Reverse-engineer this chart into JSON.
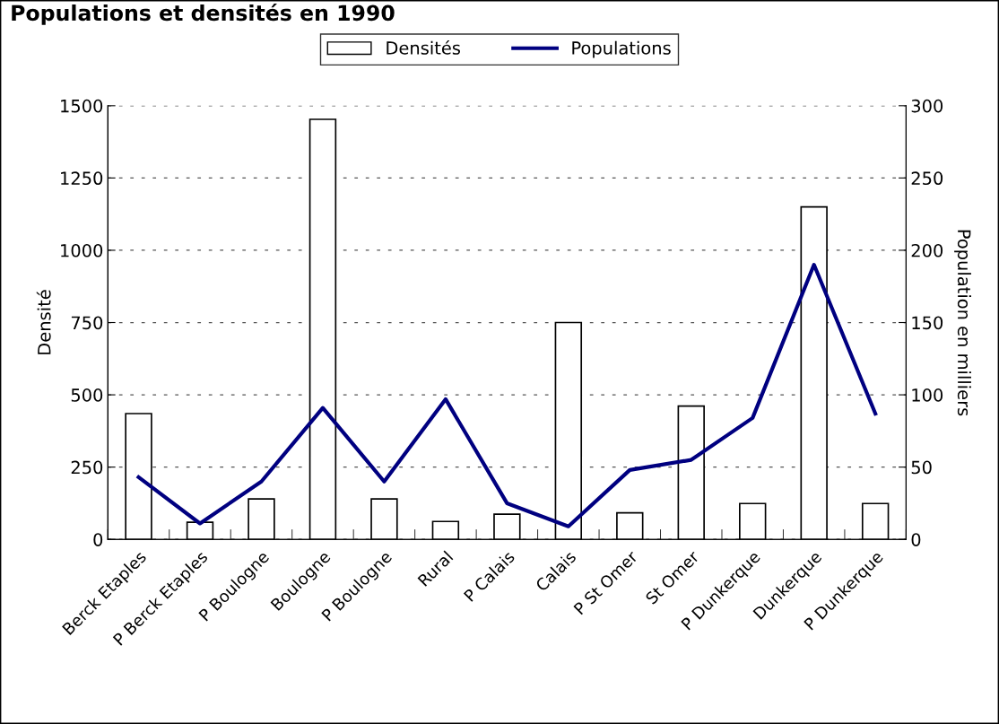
{
  "chart_data": {
    "type": "bar",
    "title": "Populations et densités en 1990",
    "categories": [
      "Berck Etaples",
      "P Berck Etaples",
      "P Boulogne",
      "Boulogne",
      "P Boulogne",
      "Rural",
      "P Calais",
      "Calais",
      "P St Omer",
      "St Omer",
      "P Dunkerque",
      "Dunkerque",
      "P Dunkerque"
    ],
    "series": [
      {
        "name": "Densités",
        "color": "#ffffff",
        "values": [
          435,
          59,
          140,
          1453,
          140,
          62,
          87,
          750,
          92,
          461,
          124,
          1150,
          124
        ]
      },
      {
        "name": "Populations",
        "type": "line",
        "axis": "y2",
        "color": "#000080",
        "values": [
          43,
          11,
          40,
          91,
          40,
          97,
          25,
          9,
          48,
          55,
          84,
          190,
          87
        ]
      }
    ],
    "ylabel": "Densité",
    "y2label": "Population en milliers",
    "ylim": [
      0,
      1500
    ],
    "yticks": [
      0,
      250,
      500,
      750,
      1000,
      1250,
      1500
    ],
    "y2lim": [
      0,
      300
    ],
    "y2ticks": [
      0,
      50,
      100,
      150,
      200,
      250,
      300
    ],
    "grid": "y",
    "legend": "top",
    "marker": "none",
    "line_style": "solid"
  }
}
